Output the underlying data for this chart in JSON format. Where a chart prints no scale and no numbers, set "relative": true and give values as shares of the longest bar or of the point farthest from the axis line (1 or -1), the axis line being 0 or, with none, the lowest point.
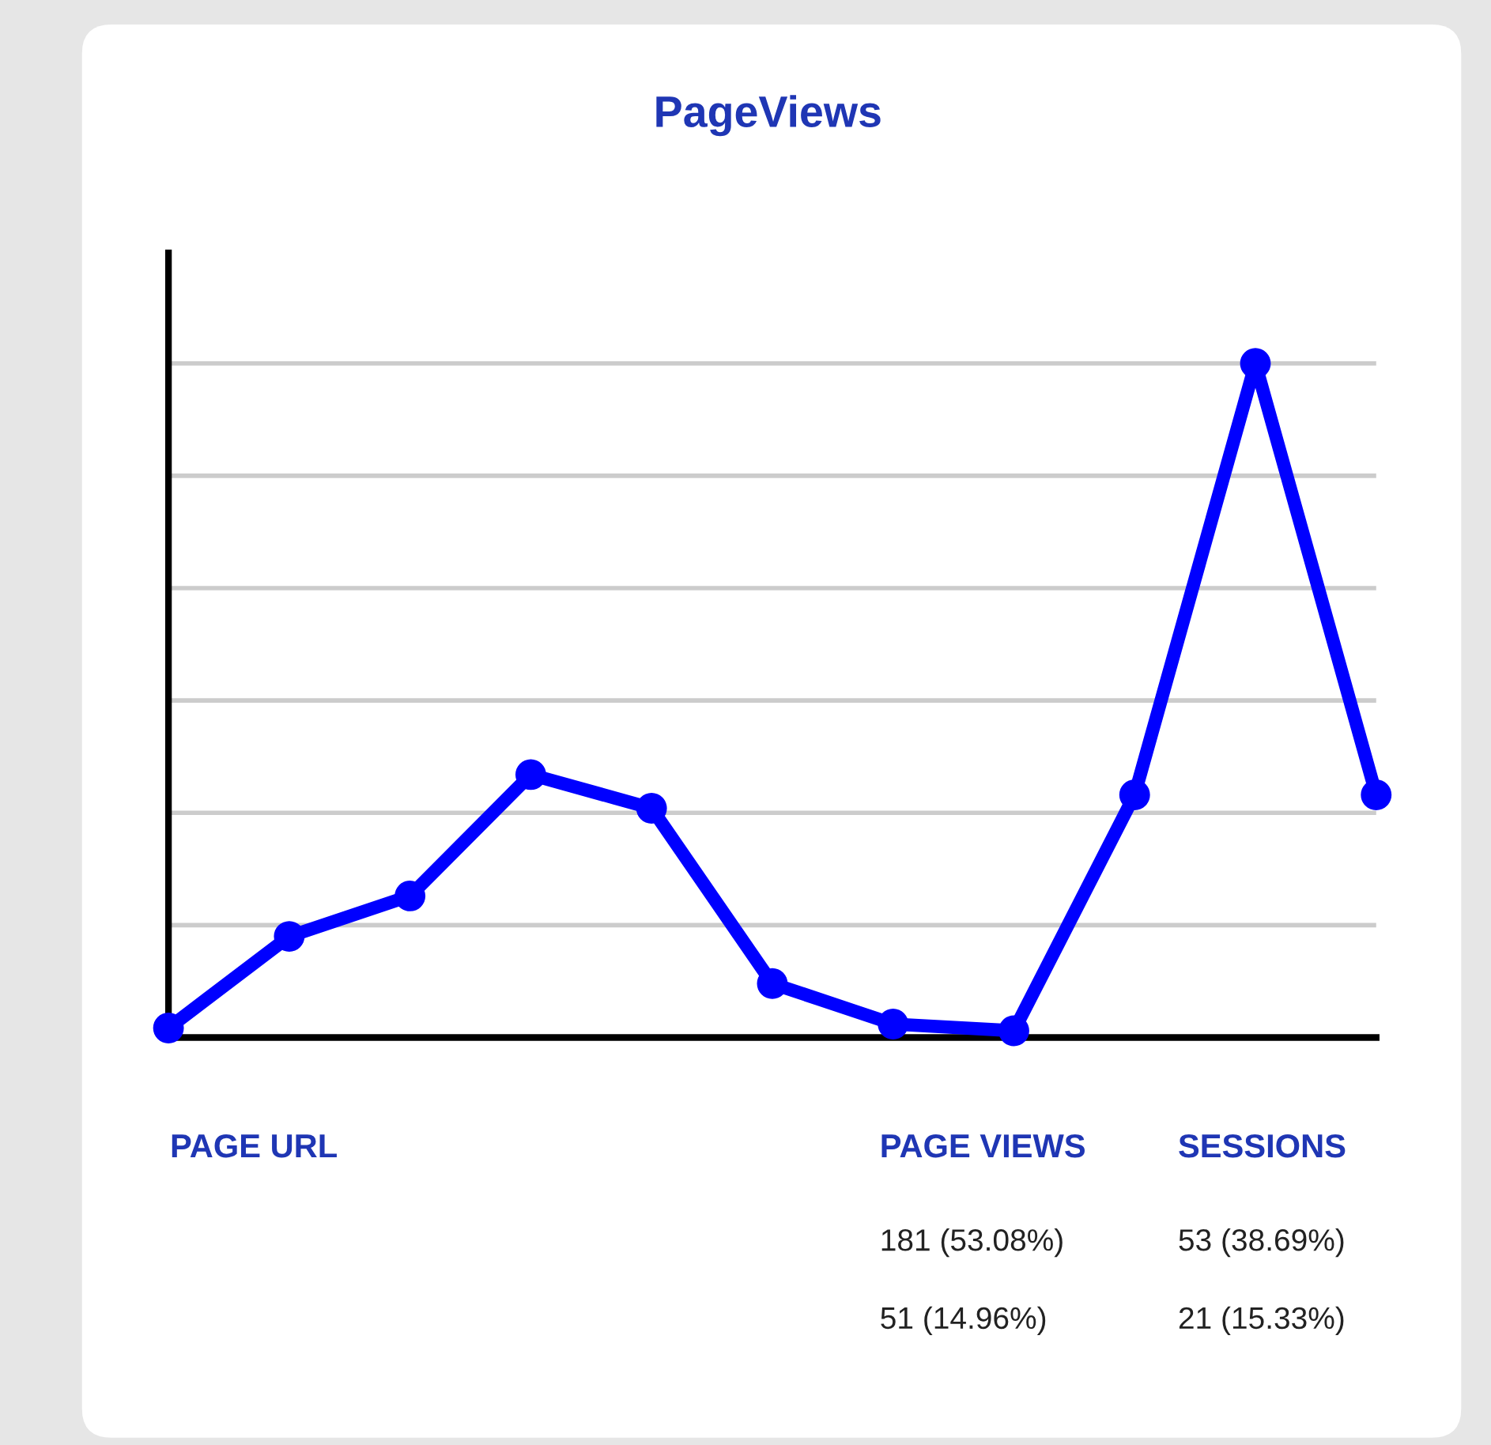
{
  "chart_data": [
    {
      "type": "line",
      "title": "PageViews",
      "relative": true,
      "categories": [
        null,
        null,
        null,
        null,
        null,
        null,
        null,
        null,
        null,
        null,
        null
      ],
      "series": [
        {
          "color": "#0000ff",
          "values": [
            0.014,
            0.15,
            0.21,
            0.39,
            0.34,
            0.08,
            0.02,
            0.01,
            0.36,
            1,
            0.36
          ]
        }
      ],
      "grid": "y",
      "marker": "circle",
      "line_style": "solid",
      "legend": false
    },
    {
      "type": "other",
      "annotations": [
        "PAGE URL",
        "PAGE VIEWS",
        "SESSIONS",
        "181 (53.08%)",
        "53 (38.69%)",
        "51 (14.96%)",
        "21 (15.33%)"
      ]
    }
  ]
}
